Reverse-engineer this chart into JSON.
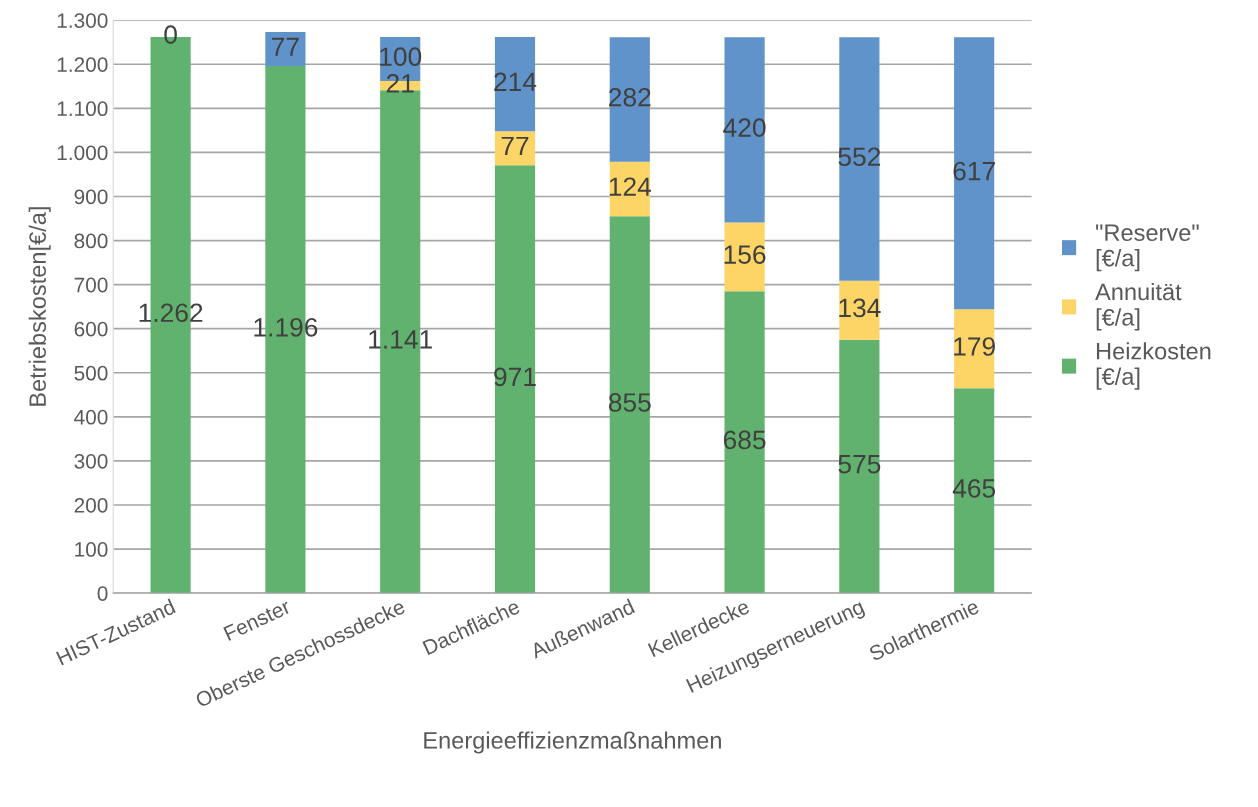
{
  "chart_data": {
    "type": "bar",
    "stacked": true,
    "xlabel": "Energieeffizienzmaßnahmen",
    "ylabel": "Betriebskosten[€/a]",
    "categories": [
      "HIST-Zustand",
      "Fenster",
      "Oberste Geschossdecke",
      "Dachfläche",
      "Außenwand",
      "Kellerdecke",
      "Heizungserneuerung",
      "Solarthermie"
    ],
    "series": [
      {
        "name": "Heizkosten [€/a]",
        "color": "#62b26f",
        "values": [
          1262,
          1196,
          1141,
          971,
          855,
          685,
          575,
          465
        ],
        "value_labels": [
          "1.262",
          "1.196",
          "1.141",
          "971",
          "855",
          "685",
          "575",
          "465"
        ]
      },
      {
        "name": "Annuität [€/a]",
        "color": "#fdd466",
        "values": [
          null,
          null,
          21,
          77,
          124,
          156,
          134,
          179
        ],
        "value_labels": [
          null,
          null,
          "21",
          "77",
          "124",
          "156",
          "134",
          "179"
        ]
      },
      {
        "name": "\"Reserve\" [€/a]",
        "color": "#6093c9",
        "values": [
          0,
          77,
          100,
          214,
          282,
          420,
          552,
          617
        ],
        "value_labels": [
          "0",
          "77",
          "100",
          "214",
          "282",
          "420",
          "552",
          "617"
        ]
      }
    ],
    "ylim": [
      0,
      1300
    ],
    "yticks": [
      0,
      100,
      200,
      300,
      400,
      500,
      600,
      700,
      800,
      900,
      {
        "value": 1000,
        "label": "1.000"
      },
      {
        "value": 1100,
        "label": "1.100"
      },
      {
        "value": 1200,
        "label": "1.200"
      },
      {
        "value": 1300,
        "label": "1.300"
      }
    ],
    "grid": "y",
    "legend": "right"
  }
}
